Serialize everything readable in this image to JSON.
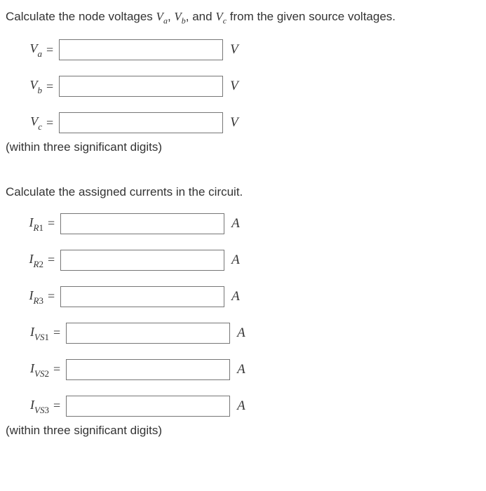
{
  "section1": {
    "prompt_pre": "Calculate the node voltages ",
    "prompt_mid1": ", ",
    "prompt_mid2": ", and ",
    "prompt_post": " from the given source voltages.",
    "va_sym_main": "V",
    "va_sym_sub": "a",
    "vb_sym_main": "V",
    "vb_sym_sub": "b",
    "vc_sym_main": "V",
    "vc_sym_sub": "c",
    "rows": [
      {
        "main": "V",
        "sub": "a",
        "unit": "V"
      },
      {
        "main": "V",
        "sub": "b",
        "unit": "V"
      },
      {
        "main": "V",
        "sub": "c",
        "unit": "V"
      }
    ],
    "note": "(within three significant digits)"
  },
  "section2": {
    "prompt": "Calculate the assigned currents in the circuit.",
    "rows": [
      {
        "main": "I",
        "subL": "R",
        "subN": "1",
        "unit": "A",
        "cls": "w-ir"
      },
      {
        "main": "I",
        "subL": "R",
        "subN": "2",
        "unit": "A",
        "cls": "w-ir"
      },
      {
        "main": "I",
        "subL": "R",
        "subN": "3",
        "unit": "A",
        "cls": "w-ir"
      },
      {
        "main": "I",
        "subL": "VS",
        "subN": "1",
        "unit": "A",
        "cls": "w-ivs"
      },
      {
        "main": "I",
        "subL": "VS",
        "subN": "2",
        "unit": "A",
        "cls": "w-ivs"
      },
      {
        "main": "I",
        "subL": "VS",
        "subN": "3",
        "unit": "A",
        "cls": "w-ivs"
      }
    ],
    "note": "(within three significant digits)"
  },
  "eq": "="
}
